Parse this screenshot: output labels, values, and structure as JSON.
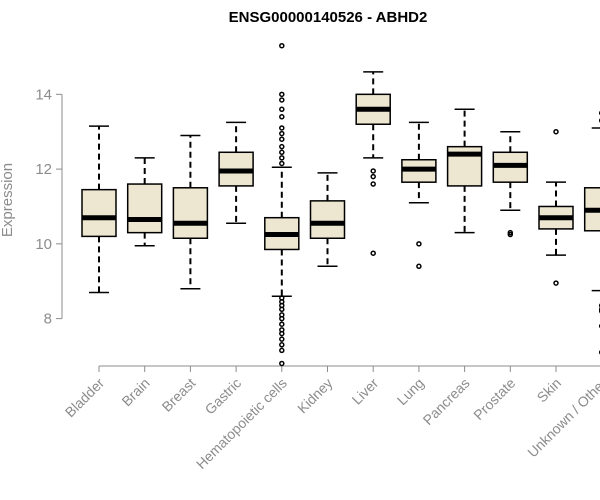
{
  "chart_data": {
    "type": "boxplot",
    "title": "ENSG00000140526 - ABHD2",
    "xlabel": "",
    "ylabel": "Expression",
    "ylim": [
      7.0,
      15.4
    ],
    "yticks": [
      8,
      10,
      12,
      14
    ],
    "ytick_labels": [
      "8",
      "10",
      "12",
      "14"
    ],
    "grid": false,
    "box_fill": "#ede6d0",
    "categories": [
      "Bladder",
      "Brain",
      "Breast",
      "Gastric",
      "Hematopoietic cells",
      "Kidney",
      "Liver",
      "Lung",
      "Pancreas",
      "Prostate",
      "Skin",
      "Unknown / Other"
    ],
    "boxes": [
      {
        "q1": 10.2,
        "median": 10.7,
        "q3": 11.45,
        "whisker_low": 8.7,
        "whisker_high": 13.15,
        "outliers": []
      },
      {
        "q1": 10.3,
        "median": 10.65,
        "q3": 11.6,
        "whisker_low": 9.95,
        "whisker_high": 12.3,
        "outliers": []
      },
      {
        "q1": 10.15,
        "median": 10.55,
        "q3": 11.5,
        "whisker_low": 8.8,
        "whisker_high": 12.9,
        "outliers": []
      },
      {
        "q1": 11.55,
        "median": 11.95,
        "q3": 12.45,
        "whisker_low": 10.55,
        "whisker_high": 13.25,
        "outliers": []
      },
      {
        "q1": 9.85,
        "median": 10.25,
        "q3": 10.7,
        "whisker_low": 8.6,
        "whisker_high": 12.05,
        "outliers": [
          15.3,
          14.0,
          13.85,
          13.6,
          13.4,
          13.1,
          12.95,
          12.8,
          12.6,
          12.45,
          12.3,
          12.15,
          8.55,
          8.45,
          8.35,
          8.25,
          8.1,
          8.0,
          7.85,
          7.7,
          7.6,
          7.45,
          7.3,
          7.15,
          6.8
        ]
      },
      {
        "q1": 10.15,
        "median": 10.55,
        "q3": 11.15,
        "whisker_low": 9.4,
        "whisker_high": 11.9,
        "outliers": []
      },
      {
        "q1": 13.2,
        "median": 13.6,
        "q3": 14.0,
        "whisker_low": 12.3,
        "whisker_high": 14.6,
        "outliers": [
          11.95,
          11.8,
          11.6,
          9.75
        ]
      },
      {
        "q1": 11.65,
        "median": 12.0,
        "q3": 12.25,
        "whisker_low": 11.1,
        "whisker_high": 13.25,
        "outliers": [
          10.0,
          9.4
        ]
      },
      {
        "q1": 11.55,
        "median": 12.4,
        "q3": 12.6,
        "whisker_low": 10.3,
        "whisker_high": 13.6,
        "outliers": []
      },
      {
        "q1": 11.65,
        "median": 12.1,
        "q3": 12.45,
        "whisker_low": 10.9,
        "whisker_high": 13.0,
        "outliers": [
          10.3,
          10.25
        ]
      },
      {
        "q1": 10.4,
        "median": 10.7,
        "q3": 11.0,
        "whisker_low": 9.7,
        "whisker_high": 11.65,
        "outliers": [
          13.0,
          8.95
        ]
      },
      {
        "q1": 10.35,
        "median": 10.9,
        "q3": 11.5,
        "whisker_low": 8.75,
        "whisker_high": 13.1,
        "outliers": [
          13.5,
          13.3,
          8.35,
          8.25,
          8.2,
          7.8,
          7.1
        ]
      }
    ]
  }
}
